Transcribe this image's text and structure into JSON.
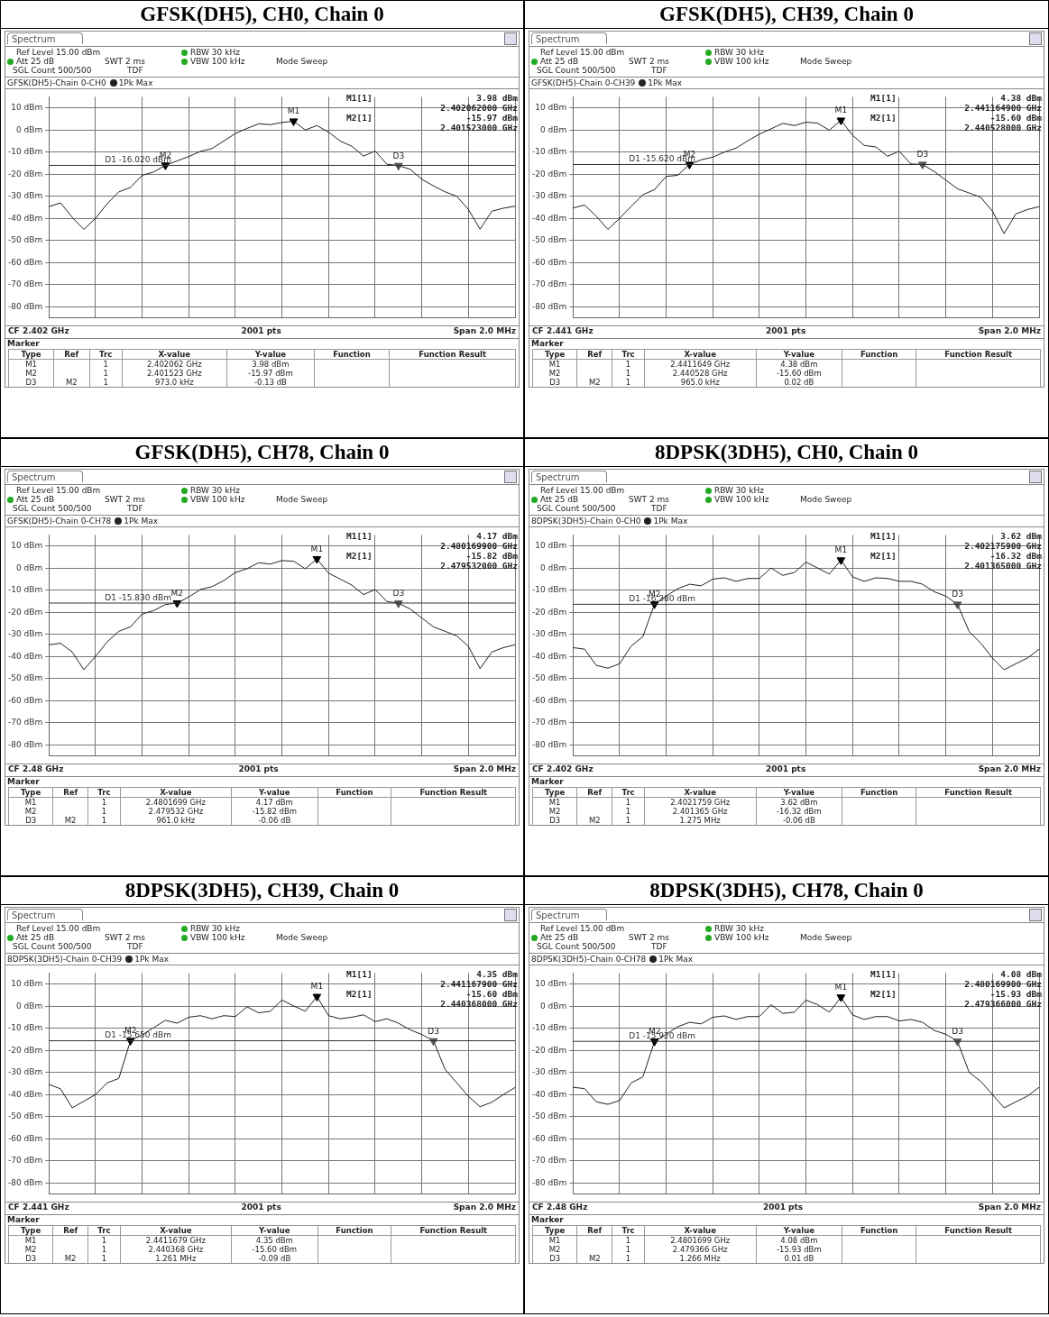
{
  "chart_data": [
    {
      "type": "line",
      "title": "GFSK(DH5), CH0, Chain 0",
      "categories": [
        null,
        null,
        null,
        null,
        null,
        null,
        null,
        null,
        null,
        null,
        null,
        null,
        null,
        null,
        null,
        null,
        null,
        null,
        null,
        null,
        null,
        null,
        null,
        null,
        null,
        null,
        null,
        null,
        null,
        null,
        null,
        null,
        null,
        null,
        null,
        null,
        null,
        null,
        null,
        null,
        null
      ],
      "ylim": [
        -85,
        15
      ],
      "yticks": [
        {
          "value": 10,
          "label": "10 dBm"
        },
        {
          "value": 0,
          "label": "0 dBm"
        },
        {
          "value": -10,
          "label": "-10 dBm"
        },
        {
          "value": -20,
          "label": "-20 dBm"
        },
        {
          "value": -30,
          "label": "-30 dBm"
        },
        {
          "value": -40,
          "label": "-40 dBm"
        },
        {
          "value": -50,
          "label": "-50 dBm"
        },
        {
          "value": -60,
          "label": "-60 dBm"
        },
        {
          "value": -70,
          "label": "-70 dBm"
        },
        {
          "value": -80,
          "label": "-80 dBm"
        }
      ],
      "grid": true,
      "tick_labels": "y",
      "legend": "top left",
      "series": [
        {
          "name": "1Pk Max",
          "type": "line",
          "color": "#222222",
          "values": [
            -34.7,
            -33,
            -39.5,
            -45,
            -40,
            -33.4,
            -28,
            -26,
            -20.5,
            -19,
            -15.97,
            -14,
            -12,
            -9.7,
            -8.4,
            -5,
            -1.6,
            0.7,
            2.8,
            2.4,
            3.4,
            3.98,
            0,
            2,
            -1,
            -5,
            -7.4,
            -11.8,
            -9.5,
            -15.5,
            -16.1,
            -17.8,
            -22.3,
            -25.3,
            -28,
            -30,
            -36,
            -44.9,
            -36.8,
            -35.4,
            -34.5
          ]
        },
        {
          "name": "M1",
          "type": "scatter",
          "marker": "triangle",
          "color": "#000000",
          "values": [
            null,
            null,
            null,
            null,
            null,
            null,
            null,
            null,
            null,
            null,
            null,
            null,
            null,
            null,
            null,
            null,
            null,
            null,
            null,
            null,
            null,
            3.98,
            null,
            null,
            null,
            null,
            null,
            null,
            null,
            null,
            null,
            null,
            null,
            null,
            null,
            null,
            null,
            null,
            null,
            null,
            null
          ]
        },
        {
          "name": "M2",
          "type": "scatter",
          "marker": "triangle",
          "color": "#000000",
          "values": [
            null,
            null,
            null,
            null,
            null,
            null,
            null,
            null,
            null,
            null,
            -15.97,
            null,
            null,
            null,
            null,
            null,
            null,
            null,
            null,
            null,
            null,
            null,
            null,
            null,
            null,
            null,
            null,
            null,
            null,
            null,
            null,
            null,
            null,
            null,
            null,
            null,
            null,
            null,
            null,
            null,
            null
          ]
        },
        {
          "name": "D3",
          "type": "scatter",
          "marker": "triangle",
          "color": "#555555",
          "values": [
            null,
            null,
            null,
            null,
            null,
            null,
            null,
            null,
            null,
            null,
            null,
            null,
            null,
            null,
            null,
            null,
            null,
            null,
            null,
            null,
            null,
            null,
            null,
            null,
            null,
            null,
            null,
            null,
            null,
            null,
            -16.1,
            null,
            null,
            null,
            null,
            null,
            null,
            null,
            null,
            null,
            null
          ]
        }
      ],
      "ref_lines": [
        {
          "axis": "y",
          "value": -16.02,
          "label": "D1 -16.020 dBm",
          "color": "#333333"
        }
      ],
      "annotations": [
        "Spectrum",
        "Ref Level 15.00 dBm",
        "Att 25 dB",
        "SWT 2 ms",
        "RBW 30 kHz",
        "VBW 100 kHz",
        "Mode Sweep",
        "SGL Count 500/500",
        "TDF",
        "GFSK(DH5)-Chain 0-CH0",
        "M1[1]",
        "3.98 dBm",
        "2.402062000 GHz",
        "M2[1]",
        "-15.97 dBm",
        "2.401523000 GHz",
        "CF 2.402 GHz",
        "2001 pts",
        "Span 2.0 MHz",
        "Marker",
        "Type",
        "Ref",
        "Trc",
        "X-value",
        "Y-value",
        "Function",
        "Function Result",
        "M1",
        "1",
        "2.402062 GHz",
        "3.98 dBm",
        "M2",
        "1",
        "2.401523 GHz",
        "-15.97 dBm",
        "D3",
        "M2",
        "1",
        "973.0 kHz",
        "-0.13 dB"
      ]
    },
    {
      "type": "line",
      "title": "GFSK(DH5), CH39, Chain 0",
      "categories": [
        null,
        null,
        null,
        null,
        null,
        null,
        null,
        null,
        null,
        null,
        null,
        null,
        null,
        null,
        null,
        null,
        null,
        null,
        null,
        null,
        null,
        null,
        null,
        null,
        null,
        null,
        null,
        null,
        null,
        null,
        null,
        null,
        null,
        null,
        null,
        null,
        null,
        null,
        null,
        null,
        null
      ],
      "ylim": [
        -85,
        15
      ],
      "yticks": [
        {
          "value": 10,
          "label": "10 dBm"
        },
        {
          "value": 0,
          "label": "0 dBm"
        },
        {
          "value": -10,
          "label": "-10 dBm"
        },
        {
          "value": -20,
          "label": "-20 dBm"
        },
        {
          "value": -30,
          "label": "-30 dBm"
        },
        {
          "value": -40,
          "label": "-40 dBm"
        },
        {
          "value": -50,
          "label": "-50 dBm"
        },
        {
          "value": -60,
          "label": "-60 dBm"
        },
        {
          "value": -70,
          "label": "-70 dBm"
        },
        {
          "value": -80,
          "label": "-80 dBm"
        }
      ],
      "grid": true,
      "tick_labels": "y",
      "legend": "top left",
      "series": [
        {
          "name": "1Pk Max",
          "type": "line",
          "color": "#222222",
          "values": [
            -35.3,
            -34,
            -39,
            -45,
            -40,
            -34.5,
            -29.3,
            -27,
            -21,
            -20.5,
            -15.6,
            -13.5,
            -12.3,
            -10,
            -8.2,
            -4.9,
            -1.9,
            0.5,
            3,
            2,
            3.5,
            3.1,
            -0.1,
            4.38,
            -2.4,
            -7,
            -7.7,
            -11.9,
            -9.6,
            -15.4,
            -15.6,
            -18.8,
            -22.7,
            -26.6,
            -28.5,
            -30.5,
            -36.8,
            -46.9,
            -38,
            -36,
            -34.7
          ]
        },
        {
          "name": "M1",
          "type": "scatter",
          "marker": "triangle",
          "color": "#000000",
          "values": [
            null,
            null,
            null,
            null,
            null,
            null,
            null,
            null,
            null,
            null,
            null,
            null,
            null,
            null,
            null,
            null,
            null,
            null,
            null,
            null,
            null,
            null,
            null,
            4.38,
            null,
            null,
            null,
            null,
            null,
            null,
            null,
            null,
            null,
            null,
            null,
            null,
            null,
            null,
            null,
            null,
            null
          ]
        },
        {
          "name": "M2",
          "type": "scatter",
          "marker": "triangle",
          "color": "#000000",
          "values": [
            null,
            null,
            null,
            null,
            null,
            null,
            null,
            null,
            null,
            null,
            -15.6,
            null,
            null,
            null,
            null,
            null,
            null,
            null,
            null,
            null,
            null,
            null,
            null,
            null,
            null,
            null,
            null,
            null,
            null,
            null,
            null,
            null,
            null,
            null,
            null,
            null,
            null,
            null,
            null,
            null,
            null
          ]
        },
        {
          "name": "D3",
          "type": "scatter",
          "marker": "triangle",
          "color": "#555555",
          "values": [
            null,
            null,
            null,
            null,
            null,
            null,
            null,
            null,
            null,
            null,
            null,
            null,
            null,
            null,
            null,
            null,
            null,
            null,
            null,
            null,
            null,
            null,
            null,
            null,
            null,
            null,
            null,
            null,
            null,
            null,
            -15.6,
            null,
            null,
            null,
            null,
            null,
            null,
            null,
            null,
            null,
            null
          ]
        }
      ],
      "ref_lines": [
        {
          "axis": "y",
          "value": -15.62,
          "label": "D1 -15.620 dBm",
          "color": "#333333"
        }
      ],
      "annotations": [
        "Spectrum",
        "Ref Level 15.00 dBm",
        "Att 25 dB",
        "SWT 2 ms",
        "RBW 30 kHz",
        "VBW 100 kHz",
        "Mode Sweep",
        "SGL Count 500/500",
        "TDF",
        "GFSK(DH5)-Chain 0-CH39",
        "M1[1]",
        "4.38 dBm",
        "2.441164900 GHz",
        "M2[1]",
        "-15.60 dBm",
        "2.440528000 GHz",
        "CF 2.441 GHz",
        "2001 pts",
        "Span 2.0 MHz",
        "Marker",
        "Type",
        "Ref",
        "Trc",
        "X-value",
        "Y-value",
        "Function",
        "Function Result",
        "M1",
        "1",
        "2.4411649 GHz",
        "4.38 dBm",
        "M2",
        "1",
        "2.440528 GHz",
        "-15.60 dBm",
        "D3",
        "M2",
        "1",
        "965.0 kHz",
        "0.02 dB"
      ]
    },
    {
      "type": "line",
      "title": "GFSK(DH5), CH78, Chain 0",
      "categories": [
        null,
        null,
        null,
        null,
        null,
        null,
        null,
        null,
        null,
        null,
        null,
        null,
        null,
        null,
        null,
        null,
        null,
        null,
        null,
        null,
        null,
        null,
        null,
        null,
        null,
        null,
        null,
        null,
        null,
        null,
        null,
        null,
        null,
        null,
        null,
        null,
        null,
        null,
        null,
        null,
        null
      ],
      "ylim": [
        -85,
        15
      ],
      "yticks": [
        {
          "value": 10,
          "label": "10 dBm"
        },
        {
          "value": 0,
          "label": "0 dBm"
        },
        {
          "value": -10,
          "label": "-10 dBm"
        },
        {
          "value": -20,
          "label": "-20 dBm"
        },
        {
          "value": -30,
          "label": "-30 dBm"
        },
        {
          "value": -40,
          "label": "-40 dBm"
        },
        {
          "value": -50,
          "label": "-50 dBm"
        },
        {
          "value": -60,
          "label": "-60 dBm"
        },
        {
          "value": -70,
          "label": "-70 dBm"
        },
        {
          "value": -80,
          "label": "-80 dBm"
        }
      ],
      "grid": true,
      "tick_labels": "y",
      "legend": "top left",
      "series": [
        {
          "name": "1Pk Max",
          "type": "line",
          "color": "#222222",
          "values": [
            -34.7,
            -34,
            -38,
            -46,
            -40,
            -33.4,
            -28.6,
            -26.6,
            -20.8,
            -19.2,
            -16.5,
            -15.82,
            -13.1,
            -9.7,
            -8.4,
            -5.7,
            -2,
            -0.3,
            2.4,
            1.8,
            3.4,
            3.1,
            -0.3,
            4.17,
            -2.3,
            -5,
            -7.7,
            -12,
            -9.7,
            -15.1,
            -15.9,
            -18.5,
            -22.6,
            -26.6,
            -28.6,
            -30.7,
            -35.4,
            -45.5,
            -38,
            -36,
            -34.7
          ]
        },
        {
          "name": "M1",
          "type": "scatter",
          "marker": "triangle",
          "color": "#000000",
          "values": [
            null,
            null,
            null,
            null,
            null,
            null,
            null,
            null,
            null,
            null,
            null,
            null,
            null,
            null,
            null,
            null,
            null,
            null,
            null,
            null,
            null,
            null,
            null,
            4.17,
            null,
            null,
            null,
            null,
            null,
            null,
            null,
            null,
            null,
            null,
            null,
            null,
            null,
            null,
            null,
            null,
            null
          ]
        },
        {
          "name": "M2",
          "type": "scatter",
          "marker": "triangle",
          "color": "#000000",
          "values": [
            null,
            null,
            null,
            null,
            null,
            null,
            null,
            null,
            null,
            null,
            null,
            -15.82,
            null,
            null,
            null,
            null,
            null,
            null,
            null,
            null,
            null,
            null,
            null,
            null,
            null,
            null,
            null,
            null,
            null,
            null,
            null,
            null,
            null,
            null,
            null,
            null,
            null,
            null,
            null,
            null,
            null
          ]
        },
        {
          "name": "D3",
          "type": "scatter",
          "marker": "triangle",
          "color": "#555555",
          "values": [
            null,
            null,
            null,
            null,
            null,
            null,
            null,
            null,
            null,
            null,
            null,
            null,
            null,
            null,
            null,
            null,
            null,
            null,
            null,
            null,
            null,
            null,
            null,
            null,
            null,
            null,
            null,
            null,
            null,
            null,
            -15.9,
            null,
            null,
            null,
            null,
            null,
            null,
            null,
            null,
            null,
            null
          ]
        }
      ],
      "ref_lines": [
        {
          "axis": "y",
          "value": -15.83,
          "label": "D1 -15.830 dBm",
          "color": "#333333"
        }
      ],
      "annotations": [
        "Spectrum",
        "Ref Level 15.00 dBm",
        "Att 25 dB",
        "SWT 2 ms",
        "RBW 30 kHz",
        "VBW 100 kHz",
        "Mode Sweep",
        "SGL Count 500/500",
        "TDF",
        "GFSK(DH5)-Chain 0-CH78",
        "M1[1]",
        "4.17 dBm",
        "2.480169900 GHz",
        "M2[1]",
        "-15.82 dBm",
        "2.479532000 GHz",
        "CF 2.48 GHz",
        "2001 pts",
        "Span 2.0 MHz",
        "Marker",
        "Type",
        "Ref",
        "Trc",
        "X-value",
        "Y-value",
        "Function",
        "Function Result",
        "M1",
        "1",
        "2.4801699 GHz",
        "4.17 dBm",
        "M2",
        "1",
        "2.479532 GHz",
        "-15.82 dBm",
        "D3",
        "M2",
        "1",
        "961.0 kHz",
        "-0.06 dB"
      ]
    },
    {
      "type": "line",
      "title": "8DPSK(3DH5), CH0, Chain 0",
      "categories": [
        null,
        null,
        null,
        null,
        null,
        null,
        null,
        null,
        null,
        null,
        null,
        null,
        null,
        null,
        null,
        null,
        null,
        null,
        null,
        null,
        null,
        null,
        null,
        null,
        null,
        null,
        null,
        null,
        null,
        null,
        null,
        null,
        null,
        null,
        null,
        null,
        null,
        null,
        null,
        null,
        null
      ],
      "ylim": [
        -85,
        15
      ],
      "yticks": [
        {
          "value": 10,
          "label": "10 dBm"
        },
        {
          "value": 0,
          "label": "0 dBm"
        },
        {
          "value": -10,
          "label": "-10 dBm"
        },
        {
          "value": -20,
          "label": "-20 dBm"
        },
        {
          "value": -30,
          "label": "-30 dBm"
        },
        {
          "value": -40,
          "label": "-40 dBm"
        },
        {
          "value": -50,
          "label": "-50 dBm"
        },
        {
          "value": -60,
          "label": "-60 dBm"
        },
        {
          "value": -70,
          "label": "-70 dBm"
        },
        {
          "value": -80,
          "label": "-80 dBm"
        }
      ],
      "grid": true,
      "tick_labels": "y",
      "legend": "top left",
      "series": [
        {
          "name": "1Pk Max",
          "type": "line",
          "color": "#222222",
          "values": [
            -36,
            -36.7,
            -44,
            -45.3,
            -43.3,
            -35.3,
            -31,
            -16.32,
            -12.7,
            -9.3,
            -7.3,
            -8,
            -5,
            -4.4,
            -6,
            -4.7,
            -4.7,
            0,
            -3.3,
            -2,
            2.7,
            0,
            -2.7,
            3.62,
            -4,
            -6,
            -4.4,
            -4.7,
            -6,
            -6,
            -7.3,
            -10.7,
            -12.7,
            -16.4,
            -28.7,
            -34,
            -40.7,
            -46,
            -43.3,
            -40.7,
            -36.7
          ]
        },
        {
          "name": "M1",
          "type": "scatter",
          "marker": "triangle",
          "color": "#000000",
          "values": [
            null,
            null,
            null,
            null,
            null,
            null,
            null,
            null,
            null,
            null,
            null,
            null,
            null,
            null,
            null,
            null,
            null,
            null,
            null,
            null,
            null,
            null,
            null,
            3.62,
            null,
            null,
            null,
            null,
            null,
            null,
            null,
            null,
            null,
            null,
            null,
            null,
            null,
            null,
            null,
            null,
            null
          ]
        },
        {
          "name": "M2",
          "type": "scatter",
          "marker": "triangle",
          "color": "#000000",
          "values": [
            null,
            null,
            null,
            null,
            null,
            null,
            null,
            -16.32,
            null,
            null,
            null,
            null,
            null,
            null,
            null,
            null,
            null,
            null,
            null,
            null,
            null,
            null,
            null,
            null,
            null,
            null,
            null,
            null,
            null,
            null,
            null,
            null,
            null,
            null,
            null,
            null,
            null,
            null,
            null,
            null,
            null
          ]
        },
        {
          "name": "D3",
          "type": "scatter",
          "marker": "triangle",
          "color": "#555555",
          "values": [
            null,
            null,
            null,
            null,
            null,
            null,
            null,
            null,
            null,
            null,
            null,
            null,
            null,
            null,
            null,
            null,
            null,
            null,
            null,
            null,
            null,
            null,
            null,
            null,
            null,
            null,
            null,
            null,
            null,
            null,
            null,
            null,
            null,
            -16.4,
            null,
            null,
            null,
            null,
            null,
            null,
            null
          ]
        }
      ],
      "ref_lines": [
        {
          "axis": "y",
          "value": -16.38,
          "label": "D1 -16.380 dBm",
          "color": "#333333"
        }
      ],
      "annotations": [
        "Spectrum",
        "Ref Level 15.00 dBm",
        "Att 25 dB",
        "SWT 2 ms",
        "RBW 30 kHz",
        "VBW 100 kHz",
        "Mode Sweep",
        "SGL Count 500/500",
        "TDF",
        "8DPSK(3DH5)-Chain 0-CH0",
        "M1[1]",
        "3.62 dBm",
        "2.402175900 GHz",
        "M2[1]",
        "-16.32 dBm",
        "2.401365000 GHz",
        "CF 2.402 GHz",
        "2001 pts",
        "Span 2.0 MHz",
        "Marker",
        "Type",
        "Ref",
        "Trc",
        "X-value",
        "Y-value",
        "Function",
        "Function Result",
        "M1",
        "1",
        "2.4021759 GHz",
        "3.62 dBm",
        "M2",
        "1",
        "2.401365 GHz",
        "-16.32 dBm",
        "D3",
        "M2",
        "1",
        "1.275 MHz",
        "-0.06 dB"
      ]
    },
    {
      "type": "line",
      "title": "8DPSK(3DH5), CH39, Chain 0",
      "categories": [
        null,
        null,
        null,
        null,
        null,
        null,
        null,
        null,
        null,
        null,
        null,
        null,
        null,
        null,
        null,
        null,
        null,
        null,
        null,
        null,
        null,
        null,
        null,
        null,
        null,
        null,
        null,
        null,
        null,
        null,
        null,
        null,
        null,
        null,
        null,
        null,
        null,
        null,
        null,
        null,
        null
      ],
      "ylim": [
        -85,
        15
      ],
      "yticks": [
        {
          "value": 10,
          "label": "10 dBm"
        },
        {
          "value": 0,
          "label": "0 dBm"
        },
        {
          "value": -10,
          "label": "-10 dBm"
        },
        {
          "value": -20,
          "label": "-20 dBm"
        },
        {
          "value": -30,
          "label": "-30 dBm"
        },
        {
          "value": -40,
          "label": "-40 dBm"
        },
        {
          "value": -50,
          "label": "-50 dBm"
        },
        {
          "value": -60,
          "label": "-60 dBm"
        },
        {
          "value": -70,
          "label": "-70 dBm"
        },
        {
          "value": -80,
          "label": "-80 dBm"
        }
      ],
      "grid": true,
      "tick_labels": "y",
      "legend": "top left",
      "series": [
        {
          "name": "1Pk Max",
          "type": "line",
          "color": "#222222",
          "values": [
            -35.4,
            -37.4,
            -46,
            -43,
            -40,
            -34.7,
            -32.7,
            -15.6,
            -13,
            -9.7,
            -6.4,
            -7.7,
            -5,
            -4.3,
            -5.7,
            -4.3,
            -4.7,
            -0.3,
            -3,
            -2.3,
            2.8,
            0.1,
            -2.3,
            4.35,
            -4.3,
            -5.7,
            -5,
            -3.9,
            -7,
            -5.7,
            -7.7,
            -10.7,
            -12.8,
            -15.7,
            -28.6,
            -34.7,
            -40.8,
            -45.5,
            -43.5,
            -40,
            -36.8
          ]
        },
        {
          "name": "M1",
          "type": "scatter",
          "marker": "triangle",
          "color": "#000000",
          "values": [
            null,
            null,
            null,
            null,
            null,
            null,
            null,
            null,
            null,
            null,
            null,
            null,
            null,
            null,
            null,
            null,
            null,
            null,
            null,
            null,
            null,
            null,
            null,
            4.35,
            null,
            null,
            null,
            null,
            null,
            null,
            null,
            null,
            null,
            null,
            null,
            null,
            null,
            null,
            null,
            null,
            null
          ]
        },
        {
          "name": "M2",
          "type": "scatter",
          "marker": "triangle",
          "color": "#000000",
          "values": [
            null,
            null,
            null,
            null,
            null,
            null,
            null,
            -15.6,
            null,
            null,
            null,
            null,
            null,
            null,
            null,
            null,
            null,
            null,
            null,
            null,
            null,
            null,
            null,
            null,
            null,
            null,
            null,
            null,
            null,
            null,
            null,
            null,
            null,
            null,
            null,
            null,
            null,
            null,
            null,
            null,
            null
          ]
        },
        {
          "name": "D3",
          "type": "scatter",
          "marker": "triangle",
          "color": "#555555",
          "values": [
            null,
            null,
            null,
            null,
            null,
            null,
            null,
            null,
            null,
            null,
            null,
            null,
            null,
            null,
            null,
            null,
            null,
            null,
            null,
            null,
            null,
            null,
            null,
            null,
            null,
            null,
            null,
            null,
            null,
            null,
            null,
            null,
            null,
            -15.7,
            null,
            null,
            null,
            null,
            null,
            null,
            null
          ]
        }
      ],
      "ref_lines": [
        {
          "axis": "y",
          "value": -15.65,
          "label": "D1 -15.650 dBm",
          "color": "#333333"
        }
      ],
      "annotations": [
        "Spectrum",
        "Ref Level 15.00 dBm",
        "Att 25 dB",
        "SWT 2 ms",
        "RBW 30 kHz",
        "VBW 100 kHz",
        "Mode Sweep",
        "SGL Count 500/500",
        "TDF",
        "8DPSK(3DH5)-Chain 0-CH39",
        "M1[1]",
        "4.35 dBm",
        "2.441167900 GHz",
        "M2[1]",
        "-15.60 dBm",
        "2.440368000 GHz",
        "CF 2.441 GHz",
        "2001 pts",
        "Span 2.0 MHz",
        "Marker",
        "Type",
        "Ref",
        "Trc",
        "X-value",
        "Y-value",
        "Function",
        "Function Result",
        "M1",
        "1",
        "2.4411679 GHz",
        "4.35 dBm",
        "M2",
        "1",
        "2.440368 GHz",
        "-15.60 dBm",
        "D3",
        "M2",
        "1",
        "1.261 MHz",
        "-0.09 dB"
      ]
    },
    {
      "type": "line",
      "title": "8DPSK(3DH5), CH78, Chain 0",
      "categories": [
        null,
        null,
        null,
        null,
        null,
        null,
        null,
        null,
        null,
        null,
        null,
        null,
        null,
        null,
        null,
        null,
        null,
        null,
        null,
        null,
        null,
        null,
        null,
        null,
        null,
        null,
        null,
        null,
        null,
        null,
        null,
        null,
        null,
        null,
        null,
        null,
        null,
        null,
        null,
        null,
        null
      ],
      "ylim": [
        -85,
        15
      ],
      "yticks": [
        {
          "value": 10,
          "label": "10 dBm"
        },
        {
          "value": 0,
          "label": "0 dBm"
        },
        {
          "value": -10,
          "label": "-10 dBm"
        },
        {
          "value": -20,
          "label": "-20 dBm"
        },
        {
          "value": -30,
          "label": "-30 dBm"
        },
        {
          "value": -40,
          "label": "-40 dBm"
        },
        {
          "value": -50,
          "label": "-50 dBm"
        },
        {
          "value": -60,
          "label": "-60 dBm"
        },
        {
          "value": -70,
          "label": "-70 dBm"
        },
        {
          "value": -80,
          "label": "-80 dBm"
        }
      ],
      "grid": true,
      "tick_labels": "y",
      "legend": "top left",
      "series": [
        {
          "name": "1Pk Max",
          "type": "line",
          "color": "#222222",
          "values": [
            -36.7,
            -37.3,
            -43.3,
            -44.4,
            -42.7,
            -34.7,
            -32,
            -15.93,
            -12.7,
            -9.3,
            -7.3,
            -8,
            -5,
            -4.4,
            -6,
            -4.7,
            -4.7,
            0.7,
            -3.3,
            -2.7,
            2.7,
            0.7,
            -2.7,
            4.08,
            -4,
            -6,
            -4.7,
            -4.7,
            -6.7,
            -6,
            -7.3,
            -11,
            -12.7,
            -15.9,
            -30,
            -34,
            -40,
            -46,
            -43.3,
            -40.7,
            -36.7
          ]
        },
        {
          "name": "M1",
          "type": "scatter",
          "marker": "triangle",
          "color": "#000000",
          "values": [
            null,
            null,
            null,
            null,
            null,
            null,
            null,
            null,
            null,
            null,
            null,
            null,
            null,
            null,
            null,
            null,
            null,
            null,
            null,
            null,
            null,
            null,
            null,
            4.08,
            null,
            null,
            null,
            null,
            null,
            null,
            null,
            null,
            null,
            null,
            null,
            null,
            null,
            null,
            null,
            null,
            null
          ]
        },
        {
          "name": "M2",
          "type": "scatter",
          "marker": "triangle",
          "color": "#000000",
          "values": [
            null,
            null,
            null,
            null,
            null,
            null,
            null,
            -15.93,
            null,
            null,
            null,
            null,
            null,
            null,
            null,
            null,
            null,
            null,
            null,
            null,
            null,
            null,
            null,
            null,
            null,
            null,
            null,
            null,
            null,
            null,
            null,
            null,
            null,
            null,
            null,
            null,
            null,
            null,
            null,
            null,
            null
          ]
        },
        {
          "name": "D3",
          "type": "scatter",
          "marker": "triangle",
          "color": "#555555",
          "values": [
            null,
            null,
            null,
            null,
            null,
            null,
            null,
            null,
            null,
            null,
            null,
            null,
            null,
            null,
            null,
            null,
            null,
            null,
            null,
            null,
            null,
            null,
            null,
            null,
            null,
            null,
            null,
            null,
            null,
            null,
            null,
            null,
            null,
            -15.9,
            null,
            null,
            null,
            null,
            null,
            null,
            null
          ]
        }
      ],
      "ref_lines": [
        {
          "axis": "y",
          "value": -15.92,
          "label": "D1 -15.920 dBm",
          "color": "#333333"
        }
      ],
      "annotations": [
        "Spectrum",
        "Ref Level 15.00 dBm",
        "Att 25 dB",
        "SWT 2 ms",
        "RBW 30 kHz",
        "VBW 100 kHz",
        "Mode Sweep",
        "SGL Count 500/500",
        "TDF",
        "8DPSK(3DH5)-Chain 0-CH78",
        "M1[1]",
        "4.08 dBm",
        "2.480169900 GHz",
        "M2[1]",
        "-15.93 dBm",
        "2.479366000 GHz",
        "CF 2.48 GHz",
        "2001 pts",
        "Span 2.0 MHz",
        "Marker",
        "Type",
        "Ref",
        "Trc",
        "X-value",
        "Y-value",
        "Function",
        "Function Result",
        "M1",
        "1",
        "2.4801699 GHz",
        "4.08 dBm",
        "M2",
        "1",
        "2.479366 GHz",
        "-15.93 dBm",
        "D3",
        "M2",
        "1",
        "1.266 MHz",
        "0.01 dB"
      ]
    }
  ]
}
